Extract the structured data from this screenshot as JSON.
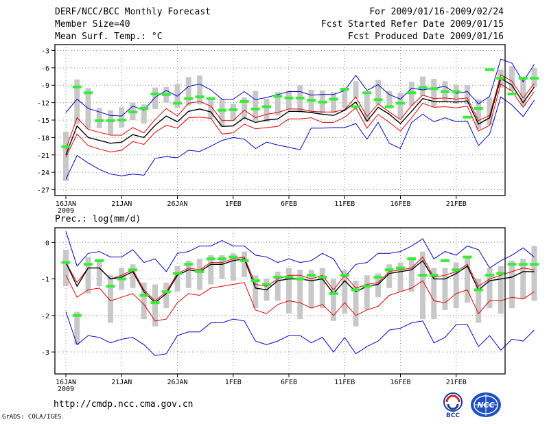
{
  "header": {
    "title": "DERF/NCC/BCC Monthly Forecast",
    "member_size": "Member Size=40",
    "variable": "Mean Surf. Temp.: °C",
    "forecast_period": "For 2009/01/16-2009/02/24",
    "started_refer": "Fcst Started Refer Date 2009/01/15",
    "produced": "Fcst Produced Date 2009/01/16"
  },
  "footer": {
    "url": "http://cmdp.ncc.cma.gov.cn",
    "grads": "GrADS: COLA/IGES",
    "logo_left": "BCC",
    "logo_right": "NCC"
  },
  "colors": {
    "envelope": "#0000c8",
    "spread": "#e00000",
    "mean": "#000000",
    "box": "#c8c8c8",
    "marker": "#33ee33",
    "grid": "#888888"
  },
  "chart_data": [
    {
      "type": "line",
      "title": "Mean Surf. Temp.: °C",
      "x_ticks": [
        "16JAN",
        "21JAN",
        "26JAN",
        "1FEB",
        "6FEB",
        "11FEB",
        "16FEB",
        "21FEB"
      ],
      "x_year": "2009",
      "ylim": [
        -28,
        -2
      ],
      "y_ticks": [
        "-3",
        "-6",
        "-9",
        "-12",
        "-15",
        "-18",
        "-21",
        "-24",
        "-27"
      ],
      "y_tick_values": [
        -3,
        -6,
        -9,
        -12,
        -15,
        -18,
        -21,
        -24,
        -27
      ],
      "series": [
        {
          "name": "max",
          "values": [
            -13.7,
            -11.4,
            -13,
            -13.6,
            -14.2,
            -14.3,
            -12.6,
            -13.3,
            -11.1,
            -9.9,
            -10.9,
            -9.2,
            -8.8,
            -9.8,
            -11.4,
            -11.4,
            -10.1,
            -11.5,
            -11.1,
            -10.6,
            -10.1,
            -10.1,
            -10.7,
            -10.6,
            -10.6,
            -9.9,
            -7.3,
            -9.9,
            -8.9,
            -10.6,
            -11.4,
            -9.5,
            -9.8,
            -9.5,
            -9.2,
            -10.4,
            -10.1,
            -12.2,
            -10.9,
            -4.5,
            -5.2,
            -8.4,
            -5.4
          ]
        },
        {
          "name": "upper",
          "values": [
            -20,
            -14.6,
            -16.6,
            -17.1,
            -17.6,
            -17.6,
            -16.3,
            -17.2,
            -14.9,
            -13,
            -14.3,
            -12.1,
            -11.8,
            -12.6,
            -15.1,
            -15.1,
            -13.3,
            -14.6,
            -14,
            -13.7,
            -13.1,
            -13.1,
            -13.5,
            -13.6,
            -13.6,
            -13.2,
            -11,
            -14.4,
            -12.2,
            -13.6,
            -14.9,
            -12.5,
            -10.7,
            -11.3,
            -11.2,
            -11.4,
            -11.2,
            -15.1,
            -14.2,
            -7.2,
            -8.3,
            -11.2,
            -8.7
          ]
        },
        {
          "name": "mean",
          "values": [
            -21,
            -16,
            -18,
            -18.5,
            -19,
            -18.8,
            -17.5,
            -18,
            -15.9,
            -14.3,
            -15.3,
            -13.5,
            -13.1,
            -13.6,
            -16.1,
            -16,
            -14.6,
            -15.4,
            -15,
            -14.8,
            -13.5,
            -13.5,
            -13.7,
            -14,
            -14.2,
            -13.3,
            -11.9,
            -15.2,
            -12.8,
            -14,
            -15.6,
            -13.5,
            -11.3,
            -11.8,
            -11.8,
            -11.9,
            -11.7,
            -15.7,
            -14.6,
            -7.8,
            -9,
            -12,
            -9.3
          ]
        },
        {
          "name": "lower",
          "values": [
            -21.4,
            -17.4,
            -19.4,
            -20,
            -20.5,
            -20.2,
            -18.7,
            -19.2,
            -17.1,
            -15.9,
            -16.4,
            -14.6,
            -14.5,
            -14.7,
            -17.4,
            -17.2,
            -15.7,
            -16.5,
            -16.3,
            -16.1,
            -14.8,
            -14.8,
            -14.6,
            -15.4,
            -15.4,
            -14.5,
            -12.9,
            -16.4,
            -14,
            -15.4,
            -16.9,
            -14.6,
            -12.1,
            -12.8,
            -12.7,
            -12.9,
            -12.6,
            -16.9,
            -15.9,
            -8.8,
            -10,
            -12.8,
            -10.1
          ]
        },
        {
          "name": "min",
          "values": [
            -25.2,
            -21.1,
            -22.4,
            -23.5,
            -24.3,
            -24.6,
            -24.3,
            -24.5,
            -21.6,
            -21.3,
            -21.5,
            -20.2,
            -20.4,
            -19.5,
            -18.5,
            -18,
            -18.3,
            -19.9,
            -18.8,
            -19.3,
            -19.7,
            -20.1,
            -16.4,
            -16.4,
            -16.3,
            -16.3,
            -15.6,
            -18.3,
            -15.4,
            -19,
            -19.9,
            -15.4,
            -14,
            -15.3,
            -14.6,
            -15.3,
            -15.2,
            -19.4,
            -17.4,
            -11,
            -12.4,
            -14.4,
            -11.6
          ]
        },
        {
          "name": "box_top",
          "values": [
            -17,
            -8,
            -9.5,
            -12.9,
            -13.3,
            -12.8,
            -12,
            -12.3,
            -9.4,
            -9.3,
            -8.8,
            -7.6,
            -7.3,
            -11.2,
            -11.4,
            -12.2,
            -11.1,
            -10,
            -11.3,
            -10.2,
            -9.9,
            -9,
            -9.8,
            -9.9,
            -10.2,
            -9.4,
            -8.3,
            -10.5,
            -8.1,
            -10,
            -10.3,
            -8.4,
            -7.5,
            -7.9,
            -8.3,
            -8.9,
            -9,
            -11.4,
            -11.1,
            -6.3,
            -5.7,
            -7.6,
            -6
          ]
        },
        {
          "name": "box_bottom",
          "values": [
            -25.5,
            -15.7,
            -16.5,
            -16.4,
            -17.5,
            -16.3,
            -15,
            -15.6,
            -13.1,
            -12,
            -12.9,
            -12.5,
            -12.3,
            -14.8,
            -16.1,
            -15.1,
            -14.8,
            -15.1,
            -15.3,
            -14.2,
            -13.2,
            -13.7,
            -13.7,
            -13.8,
            -13.8,
            -13,
            -11.2,
            -15.3,
            -12.3,
            -13,
            -14.7,
            -12.6,
            -10.8,
            -12.7,
            -11.8,
            -12.2,
            -12.3,
            -16.6,
            -15.8,
            -9.4,
            -10,
            -12.6,
            -9.3
          ]
        },
        {
          "name": "marker",
          "values": [
            -19.6,
            -9.3,
            -10.3,
            -15.1,
            -15.1,
            -15,
            -13.6,
            -13,
            -10.5,
            -10.6,
            -12.1,
            -11.3,
            -11,
            -11.3,
            -13.3,
            -13.2,
            -11.8,
            -13.1,
            -12.7,
            -10.9,
            -11.2,
            -11.2,
            -11.6,
            -11.9,
            -11.4,
            -9.7,
            -12.7,
            -10.3,
            -11.5,
            -12.7,
            -12.1,
            -10.3,
            -9.4,
            -9.6,
            -10.1,
            -10.1,
            -14.5,
            -13,
            -6.3,
            -7.8,
            -10.5,
            -7.8,
            -7.8
          ]
        }
      ]
    },
    {
      "type": "line",
      "title": "Prec.: log(mm/d)",
      "x_ticks": [
        "16JAN",
        "21JAN",
        "26JAN",
        "1FEB",
        "6FEB",
        "11FEB",
        "16FEB",
        "21FEB"
      ],
      "x_year": "2009",
      "ylim": [
        -3.6,
        0.4
      ],
      "y_ticks": [
        "0",
        "-1",
        "-2",
        "-3"
      ],
      "y_tick_values": [
        0,
        -1,
        -2,
        -3
      ],
      "series": [
        {
          "name": "max",
          "values": [
            0.3,
            -0.65,
            -0.3,
            -0.25,
            -0.4,
            -0.4,
            -0.2,
            -0.55,
            -0.45,
            -0.8,
            -0.3,
            -0.25,
            -0.1,
            -0.1,
            0.05,
            -0.1,
            -0.1,
            -0.35,
            -0.4,
            -0.55,
            -0.45,
            -0.55,
            -0.5,
            -0.3,
            -0.45,
            -0.95,
            -0.6,
            -0.55,
            -0.3,
            -0.3,
            -0.25,
            -0.1,
            0.1,
            -0.45,
            -0.25,
            -0.35,
            -0.1,
            -0.2,
            -0.7,
            -0.5,
            -0.35,
            -0.15,
            -0.4
          ]
        },
        {
          "name": "upper",
          "values": [
            -0.55,
            -1.1,
            -0.7,
            -0.7,
            -1,
            -0.9,
            -0.75,
            -1.3,
            -1.6,
            -1.35,
            -0.85,
            -0.7,
            -0.75,
            -0.55,
            -0.55,
            -0.45,
            -0.4,
            -1.15,
            -1.2,
            -1,
            -0.9,
            -0.9,
            -1,
            -0.9,
            -1.3,
            -0.9,
            -1.25,
            -1.15,
            -1.1,
            -0.8,
            -0.75,
            -0.7,
            -0.4,
            -0.95,
            -0.9,
            -0.8,
            -0.6,
            -1.2,
            -1,
            -0.9,
            -0.8,
            -0.7,
            -0.75
          ]
        },
        {
          "name": "mean",
          "values": [
            -0.55,
            -1.2,
            -0.7,
            -0.7,
            -1,
            -0.95,
            -0.8,
            -1.35,
            -1.65,
            -1.4,
            -0.9,
            -0.75,
            -0.8,
            -0.6,
            -0.6,
            -0.5,
            -0.45,
            -1.25,
            -1.3,
            -1.05,
            -1,
            -1,
            -1.05,
            -1,
            -1.4,
            -1.05,
            -1.35,
            -1.2,
            -1.15,
            -0.85,
            -0.8,
            -0.75,
            -0.5,
            -1,
            -1,
            -0.85,
            -0.65,
            -1.3,
            -1.05,
            -1,
            -0.95,
            -0.8,
            -0.8
          ]
        },
        {
          "name": "lower",
          "values": [
            -0.9,
            -1.5,
            -1.3,
            -1.25,
            -1.6,
            -1.5,
            -1.4,
            -1.7,
            -2.15,
            -2.1,
            -1.65,
            -1.4,
            -1.45,
            -1.25,
            -1.2,
            -1.15,
            -1.1,
            -1.85,
            -1.95,
            -1.7,
            -1.6,
            -1.65,
            -1.8,
            -1.7,
            -2,
            -1.65,
            -2,
            -1.85,
            -1.75,
            -1.45,
            -1.35,
            -1.25,
            -1.05,
            -1.6,
            -1.65,
            -1.4,
            -1.3,
            -1.95,
            -1.6,
            -1.6,
            -1.5,
            -1.55,
            -1.35
          ]
        },
        {
          "name": "min",
          "values": [
            -1.9,
            -2.8,
            -2.55,
            -2.6,
            -2.75,
            -2.65,
            -2.6,
            -2.8,
            -3.1,
            -3.05,
            -2.55,
            -2.45,
            -2.45,
            -2.2,
            -2.2,
            -2.1,
            -2.15,
            -2.7,
            -2.8,
            -2.7,
            -2.55,
            -2.55,
            -2.75,
            -2.6,
            -3,
            -2.6,
            -3.05,
            -2.85,
            -2.7,
            -2.4,
            -2.35,
            -2.2,
            -2.15,
            -2.75,
            -2.6,
            -2.25,
            -2.25,
            -2.85,
            -2.55,
            -2.95,
            -2.65,
            -2.7,
            -2.4
          ]
        },
        {
          "name": "box_top",
          "values": [
            -0.2,
            -1.9,
            -0.4,
            -0.5,
            -0.9,
            -0.7,
            -0.6,
            -1.1,
            -1.15,
            -1.1,
            -0.65,
            -0.5,
            -0.45,
            -0.35,
            -0.35,
            -0.3,
            -0.25,
            -0.9,
            -1,
            -0.8,
            -0.7,
            -0.75,
            -0.75,
            -0.7,
            -1,
            -0.75,
            -1.05,
            -0.9,
            -0.85,
            -0.6,
            -0.55,
            -0.4,
            -0.25,
            -0.7,
            -0.7,
            -0.55,
            -0.4,
            -1,
            -0.7,
            -0.65,
            -0.5,
            -0.45,
            -0.1
          ]
        },
        {
          "name": "box_bottom",
          "values": [
            -1.2,
            -2.8,
            -1.4,
            -1.2,
            -2.2,
            -1.3,
            -1.25,
            -2.1,
            -2.3,
            -1.8,
            -1.35,
            -1.25,
            -1.3,
            -1.15,
            -1,
            -1.05,
            -0.95,
            -1.8,
            -1.6,
            -1.6,
            -1.95,
            -2.1,
            -1.8,
            -1.8,
            -2.15,
            -1.95,
            -2.3,
            -1.85,
            -1.5,
            -1.25,
            -1.35,
            -1.35,
            -2.1,
            -2.1,
            -1.85,
            -1.8,
            -1.65,
            -2.2,
            -1.8,
            -1.95,
            -1.8,
            -1.55,
            -1.6
          ]
        },
        {
          "name": "marker",
          "values": [
            -0.55,
            -2,
            -0.6,
            -0.5,
            -1.2,
            -1,
            -0.75,
            -1.45,
            -1.65,
            -1.35,
            -0.85,
            -0.6,
            -0.8,
            -0.45,
            -0.45,
            -0.4,
            -0.5,
            -1.05,
            -1.15,
            -0.95,
            -0.95,
            -1,
            -0.9,
            -0.95,
            -1.4,
            -0.9,
            -1.3,
            -1.2,
            -0.95,
            -0.75,
            -0.7,
            -0.45,
            -0.9,
            -0.9,
            -0.5,
            -0.75,
            -0.4,
            -1.3,
            -0.9,
            -0.85,
            -0.6,
            -0.6,
            -0.6
          ]
        }
      ]
    }
  ]
}
